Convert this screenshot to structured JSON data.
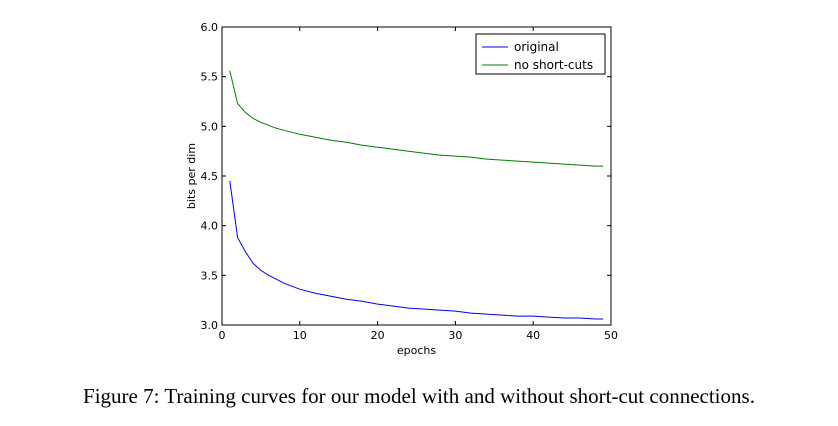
{
  "caption": "Figure 7: Training curves for our model with and without short-cut connections.",
  "chart_data": {
    "type": "line",
    "xlabel": "epochs",
    "ylabel": "bits per dim",
    "xlim": [
      0,
      50
    ],
    "ylim": [
      3.0,
      6.0
    ],
    "xticks": [
      "0",
      "10",
      "20",
      "30",
      "40",
      "50"
    ],
    "yticks": [
      "3.0",
      "3.5",
      "4.0",
      "4.5",
      "5.0",
      "5.5",
      "6.0"
    ],
    "grid": false,
    "legend_position": "top-right",
    "series": [
      {
        "name": "original",
        "color": "#0000ff",
        "x": [
          1,
          2,
          3,
          4,
          5,
          6,
          7,
          8,
          9,
          10,
          12,
          14,
          16,
          18,
          20,
          22,
          24,
          26,
          28,
          30,
          32,
          34,
          36,
          38,
          40,
          42,
          44,
          46,
          48,
          49
        ],
        "y": [
          4.45,
          3.88,
          3.74,
          3.62,
          3.55,
          3.5,
          3.46,
          3.42,
          3.39,
          3.36,
          3.32,
          3.29,
          3.26,
          3.24,
          3.21,
          3.19,
          3.17,
          3.16,
          3.15,
          3.14,
          3.12,
          3.11,
          3.1,
          3.09,
          3.09,
          3.08,
          3.07,
          3.07,
          3.06,
          3.06
        ]
      },
      {
        "name": "no short-cuts",
        "color": "#007f00",
        "x": [
          1,
          2,
          3,
          4,
          5,
          6,
          7,
          8,
          9,
          10,
          12,
          14,
          16,
          18,
          20,
          22,
          24,
          26,
          28,
          30,
          32,
          34,
          36,
          38,
          40,
          42,
          44,
          46,
          48,
          49
        ],
        "y": [
          5.56,
          5.23,
          5.14,
          5.08,
          5.04,
          5.01,
          4.98,
          4.96,
          4.94,
          4.92,
          4.89,
          4.86,
          4.84,
          4.81,
          4.79,
          4.77,
          4.75,
          4.73,
          4.71,
          4.7,
          4.69,
          4.67,
          4.66,
          4.65,
          4.64,
          4.63,
          4.62,
          4.61,
          4.6,
          4.6
        ]
      }
    ]
  }
}
